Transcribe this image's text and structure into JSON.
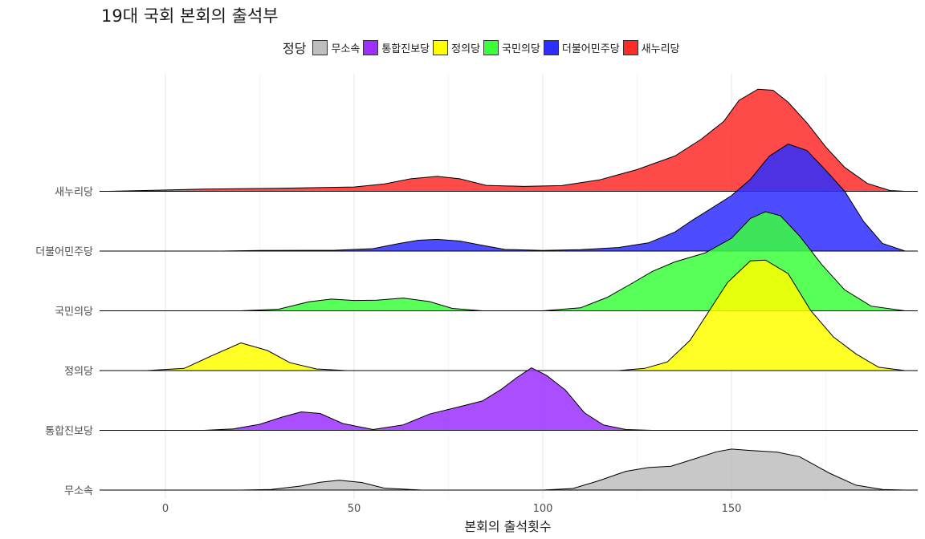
{
  "title": "19대 국회 본회의 출석부",
  "legend": {
    "title": "정당",
    "items": [
      {
        "label": "무소속",
        "color": "#bebebe"
      },
      {
        "label": "통합진보당",
        "color": "#9b30ff"
      },
      {
        "label": "정의당",
        "color": "#ffff00"
      },
      {
        "label": "국민의당",
        "color": "#3cff3c"
      },
      {
        "label": "더불어민주당",
        "color": "#2e2eff"
      },
      {
        "label": "새누리당",
        "color": "#ff2a2a"
      }
    ]
  },
  "chart_data": {
    "type": "ridgeline",
    "title": "19대 국회 본회의 출석부",
    "xlabel": "본회의 출석횟수",
    "ylabel": "",
    "xlim": [
      -18,
      198
    ],
    "x_ticks": [
      0,
      50,
      100,
      150
    ],
    "grid": true,
    "legend_title": "정당",
    "legend_position": "top",
    "categories_bottom_to_top": [
      "무소속",
      "통합진보당",
      "정의당",
      "국민의당",
      "더불어민주당",
      "새누리당"
    ],
    "series": [
      {
        "name": "무소속",
        "color": "#bebebe",
        "x": [
          -15,
          20,
          28,
          36,
          41,
          46,
          52,
          58,
          68,
          100,
          108,
          115,
          122,
          128,
          134,
          140,
          146,
          150,
          155,
          162,
          168,
          176,
          183,
          190,
          196
        ],
        "y": [
          0,
          0,
          0.02,
          0.15,
          0.29,
          0.36,
          0.28,
          0.07,
          0,
          0,
          0.06,
          0.35,
          0.69,
          0.83,
          0.88,
          1.14,
          1.41,
          1.51,
          1.46,
          1.4,
          1.23,
          0.62,
          0.18,
          0.02,
          0
        ]
      },
      {
        "name": "통합진보당",
        "color": "#9b30ff",
        "x": [
          -15,
          10,
          18,
          25,
          31,
          36,
          41,
          47,
          55,
          63,
          70,
          78,
          84,
          89,
          93,
          97,
          101,
          106,
          111,
          116,
          122,
          129,
          135
        ],
        "y": [
          0,
          0,
          0.05,
          0.22,
          0.49,
          0.68,
          0.62,
          0.25,
          0.03,
          0.2,
          0.6,
          0.87,
          1.08,
          1.51,
          1.93,
          2.3,
          2.02,
          1.48,
          0.65,
          0.2,
          0.03,
          0,
          0
        ]
      },
      {
        "name": "정의당",
        "color": "#ffff00",
        "x": [
          -15,
          -5,
          5,
          12,
          20,
          27,
          33,
          40,
          48,
          120,
          127,
          133,
          139,
          144,
          149,
          155,
          159,
          165,
          171,
          177,
          183,
          189,
          196
        ],
        "y": [
          0,
          0,
          0.08,
          0.53,
          1.02,
          0.74,
          0.29,
          0.06,
          0,
          0,
          0.08,
          0.32,
          1.11,
          2.18,
          3.25,
          4.04,
          4.07,
          3.57,
          2.21,
          1.24,
          0.61,
          0.12,
          0
        ]
      },
      {
        "name": "국민의당",
        "color": "#3cff3c",
        "x": [
          -15,
          20,
          30,
          38,
          44,
          50,
          56,
          63,
          70,
          76,
          84,
          100,
          110,
          117,
          123,
          129,
          135,
          143,
          150,
          155,
          159,
          163,
          168,
          174,
          180,
          187,
          196
        ],
        "y": [
          0,
          0,
          0.06,
          0.33,
          0.43,
          0.38,
          0.39,
          0.47,
          0.34,
          0.09,
          0,
          0,
          0.11,
          0.49,
          0.96,
          1.45,
          1.8,
          2.13,
          2.67,
          3.4,
          3.65,
          3.5,
          2.76,
          1.69,
          0.77,
          0.17,
          0
        ]
      },
      {
        "name": "더불어민주당",
        "color": "#2e2eff",
        "x": [
          -15,
          15,
          25,
          45,
          55,
          62,
          67,
          72,
          78,
          84,
          90,
          100,
          110,
          120,
          128,
          135,
          140,
          145,
          150,
          155,
          160,
          165,
          170,
          175,
          180,
          185,
          190,
          196
        ],
        "y": [
          0,
          0,
          0.02,
          0.03,
          0.09,
          0.28,
          0.4,
          0.43,
          0.37,
          0.21,
          0.06,
          0.02,
          0.05,
          0.13,
          0.3,
          0.7,
          1.17,
          1.6,
          2.04,
          2.64,
          3.49,
          3.94,
          3.7,
          2.97,
          2.2,
          1.09,
          0.28,
          0
        ]
      },
      {
        "name": "새누리당",
        "color": "#ff2a2a",
        "x": [
          -15,
          -2,
          10,
          30,
          50,
          58,
          65,
          72,
          78,
          85,
          95,
          105,
          115,
          125,
          135,
          142,
          148,
          152,
          157,
          161,
          165,
          170,
          175,
          180,
          186,
          192,
          196
        ],
        "y": [
          0,
          0.04,
          0.08,
          0.11,
          0.16,
          0.27,
          0.46,
          0.55,
          0.46,
          0.22,
          0.18,
          0.21,
          0.42,
          0.8,
          1.3,
          1.92,
          2.58,
          3.35,
          3.76,
          3.72,
          3.28,
          2.52,
          1.63,
          0.88,
          0.29,
          0.03,
          0
        ]
      }
    ]
  }
}
